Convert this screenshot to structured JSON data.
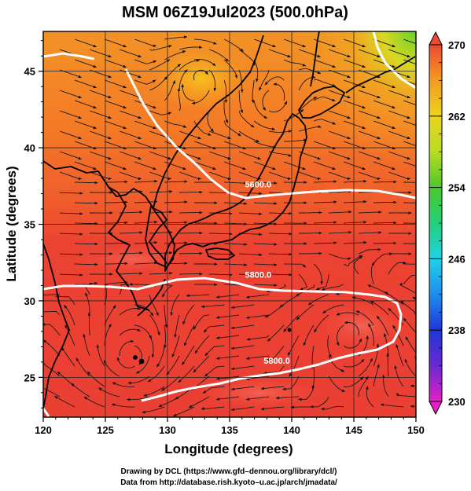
{
  "title": "MSM 06Z19Jul2023 (500.0hPa)",
  "xlabel": "Longitude (degrees)",
  "ylabel": "Latitude  (degrees)",
  "credit_line1": "Drawing by DCL (https://www.gfd–dennou.org/library/dcl/)",
  "credit_line2": "Data from http://database.rish.kyoto–u.ac.jp/arch/jmadata/",
  "map": {
    "lon_range": [
      120,
      150
    ],
    "lat_range": [
      22.4,
      47.6
    ],
    "lon_ticks": [
      {
        "value": 120,
        "label": "120"
      },
      {
        "value": 125,
        "label": "125"
      },
      {
        "value": 130,
        "label": "130"
      },
      {
        "value": 135,
        "label": "135"
      },
      {
        "value": 140,
        "label": "140"
      },
      {
        "value": 145,
        "label": "145"
      },
      {
        "value": 150,
        "label": "150"
      }
    ],
    "lat_ticks": [
      {
        "value": 25,
        "label": "25"
      },
      {
        "value": 30,
        "label": "30"
      },
      {
        "value": 35,
        "label": "35"
      },
      {
        "value": 40,
        "label": "40"
      },
      {
        "value": 45,
        "label": "45"
      }
    ],
    "grid": true,
    "contour_labels": [
      {
        "text": "5600.0",
        "lon": 137.3,
        "lat": 37.4
      },
      {
        "text": "5800.0",
        "lon": 137.3,
        "lat": 31.5
      },
      {
        "text": "5800.0",
        "lon": 138.8,
        "lat": 25.9
      }
    ]
  },
  "colorbar": {
    "range": [
      230,
      270
    ],
    "tick_labels": [
      {
        "value": 270,
        "label": "270"
      },
      {
        "value": 262,
        "label": "262"
      },
      {
        "value": 254,
        "label": "254"
      },
      {
        "value": 246,
        "label": "246"
      },
      {
        "value": 238,
        "label": "238"
      },
      {
        "value": 230,
        "label": "230"
      }
    ],
    "colors": [
      "#e81ec8",
      "#6a2ad0",
      "#1e36d8",
      "#1e8cf0",
      "#20d2e6",
      "#22d07a",
      "#4cc82a",
      "#b8dc22",
      "#ecd220",
      "#f59a20",
      "#ec4a32"
    ]
  }
}
